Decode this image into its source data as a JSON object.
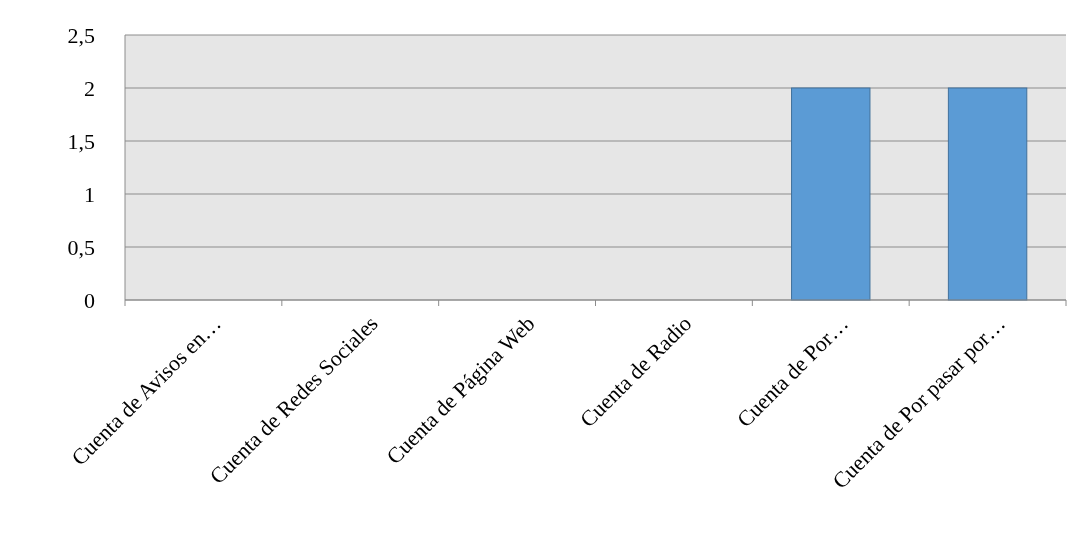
{
  "chart_data": {
    "type": "bar",
    "categories": [
      "Cuenta de Avisos en…",
      "Cuenta de Redes Sociales",
      "Cuenta de Página Web",
      "Cuenta de Radio",
      "Cuenta de Por…",
      "Cuenta de Por pasar por…"
    ],
    "values": [
      0,
      0,
      0,
      0,
      2,
      2
    ],
    "color": "#5b9bd5",
    "ylim": [
      0,
      2.5
    ],
    "yticks": [
      {
        "value": 0,
        "label": "0"
      },
      {
        "value": 0.5,
        "label": "0,5"
      },
      {
        "value": 1,
        "label": "1"
      },
      {
        "value": 1.5,
        "label": "1,5"
      },
      {
        "value": 2,
        "label": "2"
      },
      {
        "value": 2.5,
        "label": "2,5"
      }
    ],
    "grid": "y"
  }
}
